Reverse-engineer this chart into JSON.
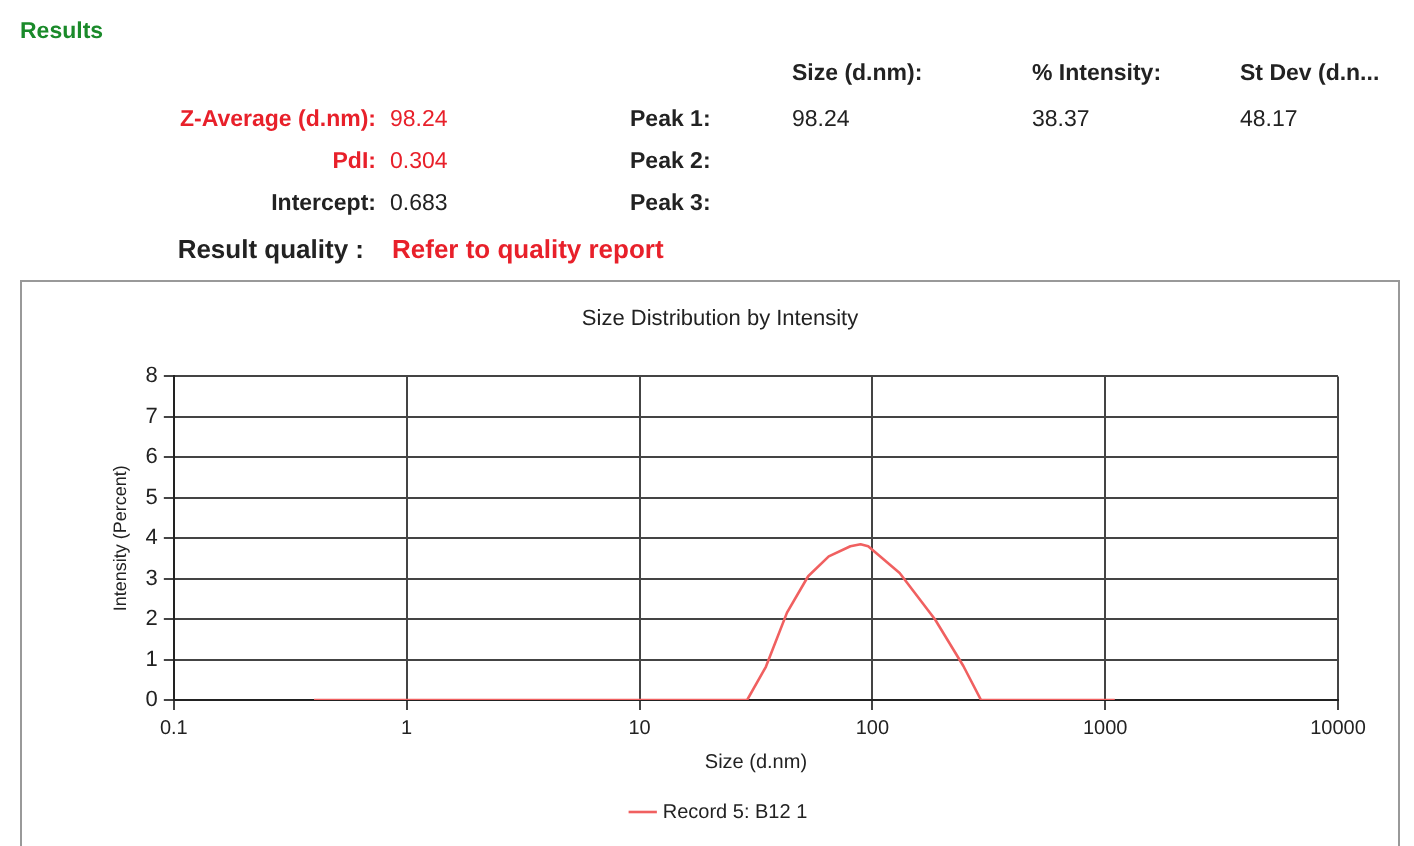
{
  "chart_data": {
    "type": "line",
    "title": "Size Distribution by Intensity",
    "xlabel": "Size (d.nm)",
    "ylabel": "Intensity (Percent)",
    "annotations": [
      "Results",
      "Size (d.nm):",
      "% Intensity:",
      "St Dev (d.n...",
      "Z-Average (d.nm):",
      "98.24",
      "Peak 1:",
      "98.24",
      "38.37",
      "48.17",
      "PdI:",
      "0.304",
      "Peak 2:",
      "Intercept:",
      "0.683",
      "Peak 3:",
      "Result quality :",
      "Refer to quality report"
    ],
    "series": [
      {
        "name": "Record 5: B12 1",
        "color": "#f06060",
        "x": [
          0.4,
          29,
          34.9,
          43,
          53,
          65,
          80.5,
          89,
          96,
          131,
          186,
          246,
          293,
          1100
        ],
        "values": [
          0,
          0,
          0.82,
          2.16,
          3.06,
          3.55,
          3.8,
          3.85,
          3.8,
          3.14,
          1.99,
          0.84,
          0,
          0
        ]
      }
    ],
    "log": "x",
    "xlim": [
      0.1,
      10000
    ],
    "xticks": [
      0.1,
      1,
      10,
      100,
      1000,
      10000
    ],
    "ylim": [
      0,
      8
    ],
    "yticks": [
      0,
      1,
      2,
      3,
      4,
      5,
      6,
      7,
      8
    ],
    "grid": true,
    "legend": "bottom",
    "marker": "none",
    "line_style": "solid"
  }
}
